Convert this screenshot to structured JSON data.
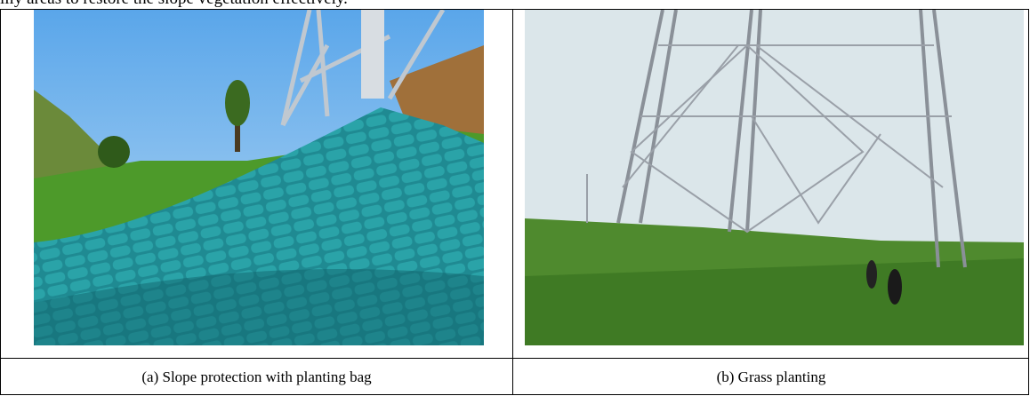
{
  "text_fragment": "illy areas to restore the slope vegetation effectively.",
  "figure": {
    "captions": [
      "(a) Slope protection with planting bag",
      "(b) Grass planting"
    ]
  }
}
